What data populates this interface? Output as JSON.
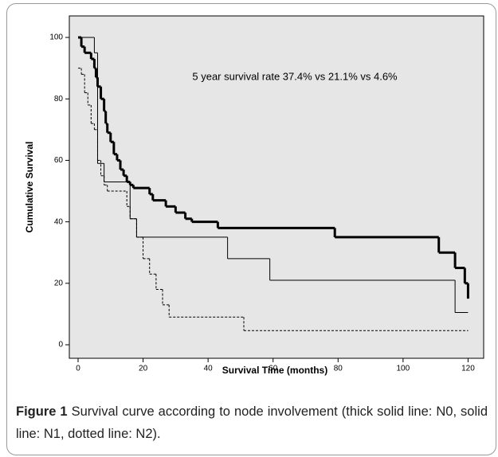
{
  "chart_data": {
    "type": "step",
    "annotation": "5 year survival rate  37.4% vs 21.1% vs 4.6%",
    "xlabel": "Survival Time (months)",
    "ylabel": "Cumulative Survival",
    "xlim": [
      -2.7,
      124.8
    ],
    "ylim": [
      -4.4,
      107
    ],
    "xticks": [
      0,
      20,
      40,
      60,
      80,
      100,
      120
    ],
    "yticks": [
      0,
      20,
      40,
      60,
      80,
      100
    ],
    "background": "#e6e6e6",
    "series": [
      {
        "color": "#000000",
        "line_width": 3,
        "dash": "solid",
        "x": [
          0,
          1,
          2,
          4,
          5,
          5.5,
          6,
          7,
          8,
          8.5,
          9,
          10,
          11,
          12,
          13,
          14,
          15,
          16,
          17,
          22,
          23,
          27,
          30,
          33,
          35,
          43,
          79,
          111,
          116,
          119,
          120
        ],
        "values": [
          100,
          97,
          95,
          93,
          90,
          87,
          84,
          80,
          76,
          72,
          69,
          66,
          62,
          60,
          57,
          55,
          53,
          52,
          51,
          49,
          47,
          45,
          43,
          41,
          40,
          38,
          35,
          30,
          25,
          20,
          15
        ]
      },
      {
        "color": "#000000",
        "line_width": 1,
        "dash": "solid",
        "x": [
          0,
          5,
          6,
          8,
          16,
          18,
          46,
          59,
          116,
          120
        ],
        "values": [
          100,
          95,
          59,
          53,
          41,
          35,
          28,
          21,
          10.5,
          10.5
        ]
      },
      {
        "color": "#000000",
        "line_width": 1,
        "dash": "dotted",
        "x": [
          0,
          1,
          2,
          3,
          4,
          5,
          6,
          7,
          8,
          9,
          15,
          16,
          18,
          20,
          22,
          24,
          26,
          28,
          51,
          120
        ],
        "values": [
          90,
          88,
          82,
          78,
          72,
          70,
          60,
          55,
          52,
          50,
          45,
          41,
          35,
          28,
          23,
          18,
          13,
          9,
          4.6,
          4.6
        ]
      }
    ]
  },
  "caption": {
    "label": "Figure 1",
    "text": "Survival curve according to node involvement (thick solid line: N0, solid line: N1, dotted line: N2)."
  }
}
